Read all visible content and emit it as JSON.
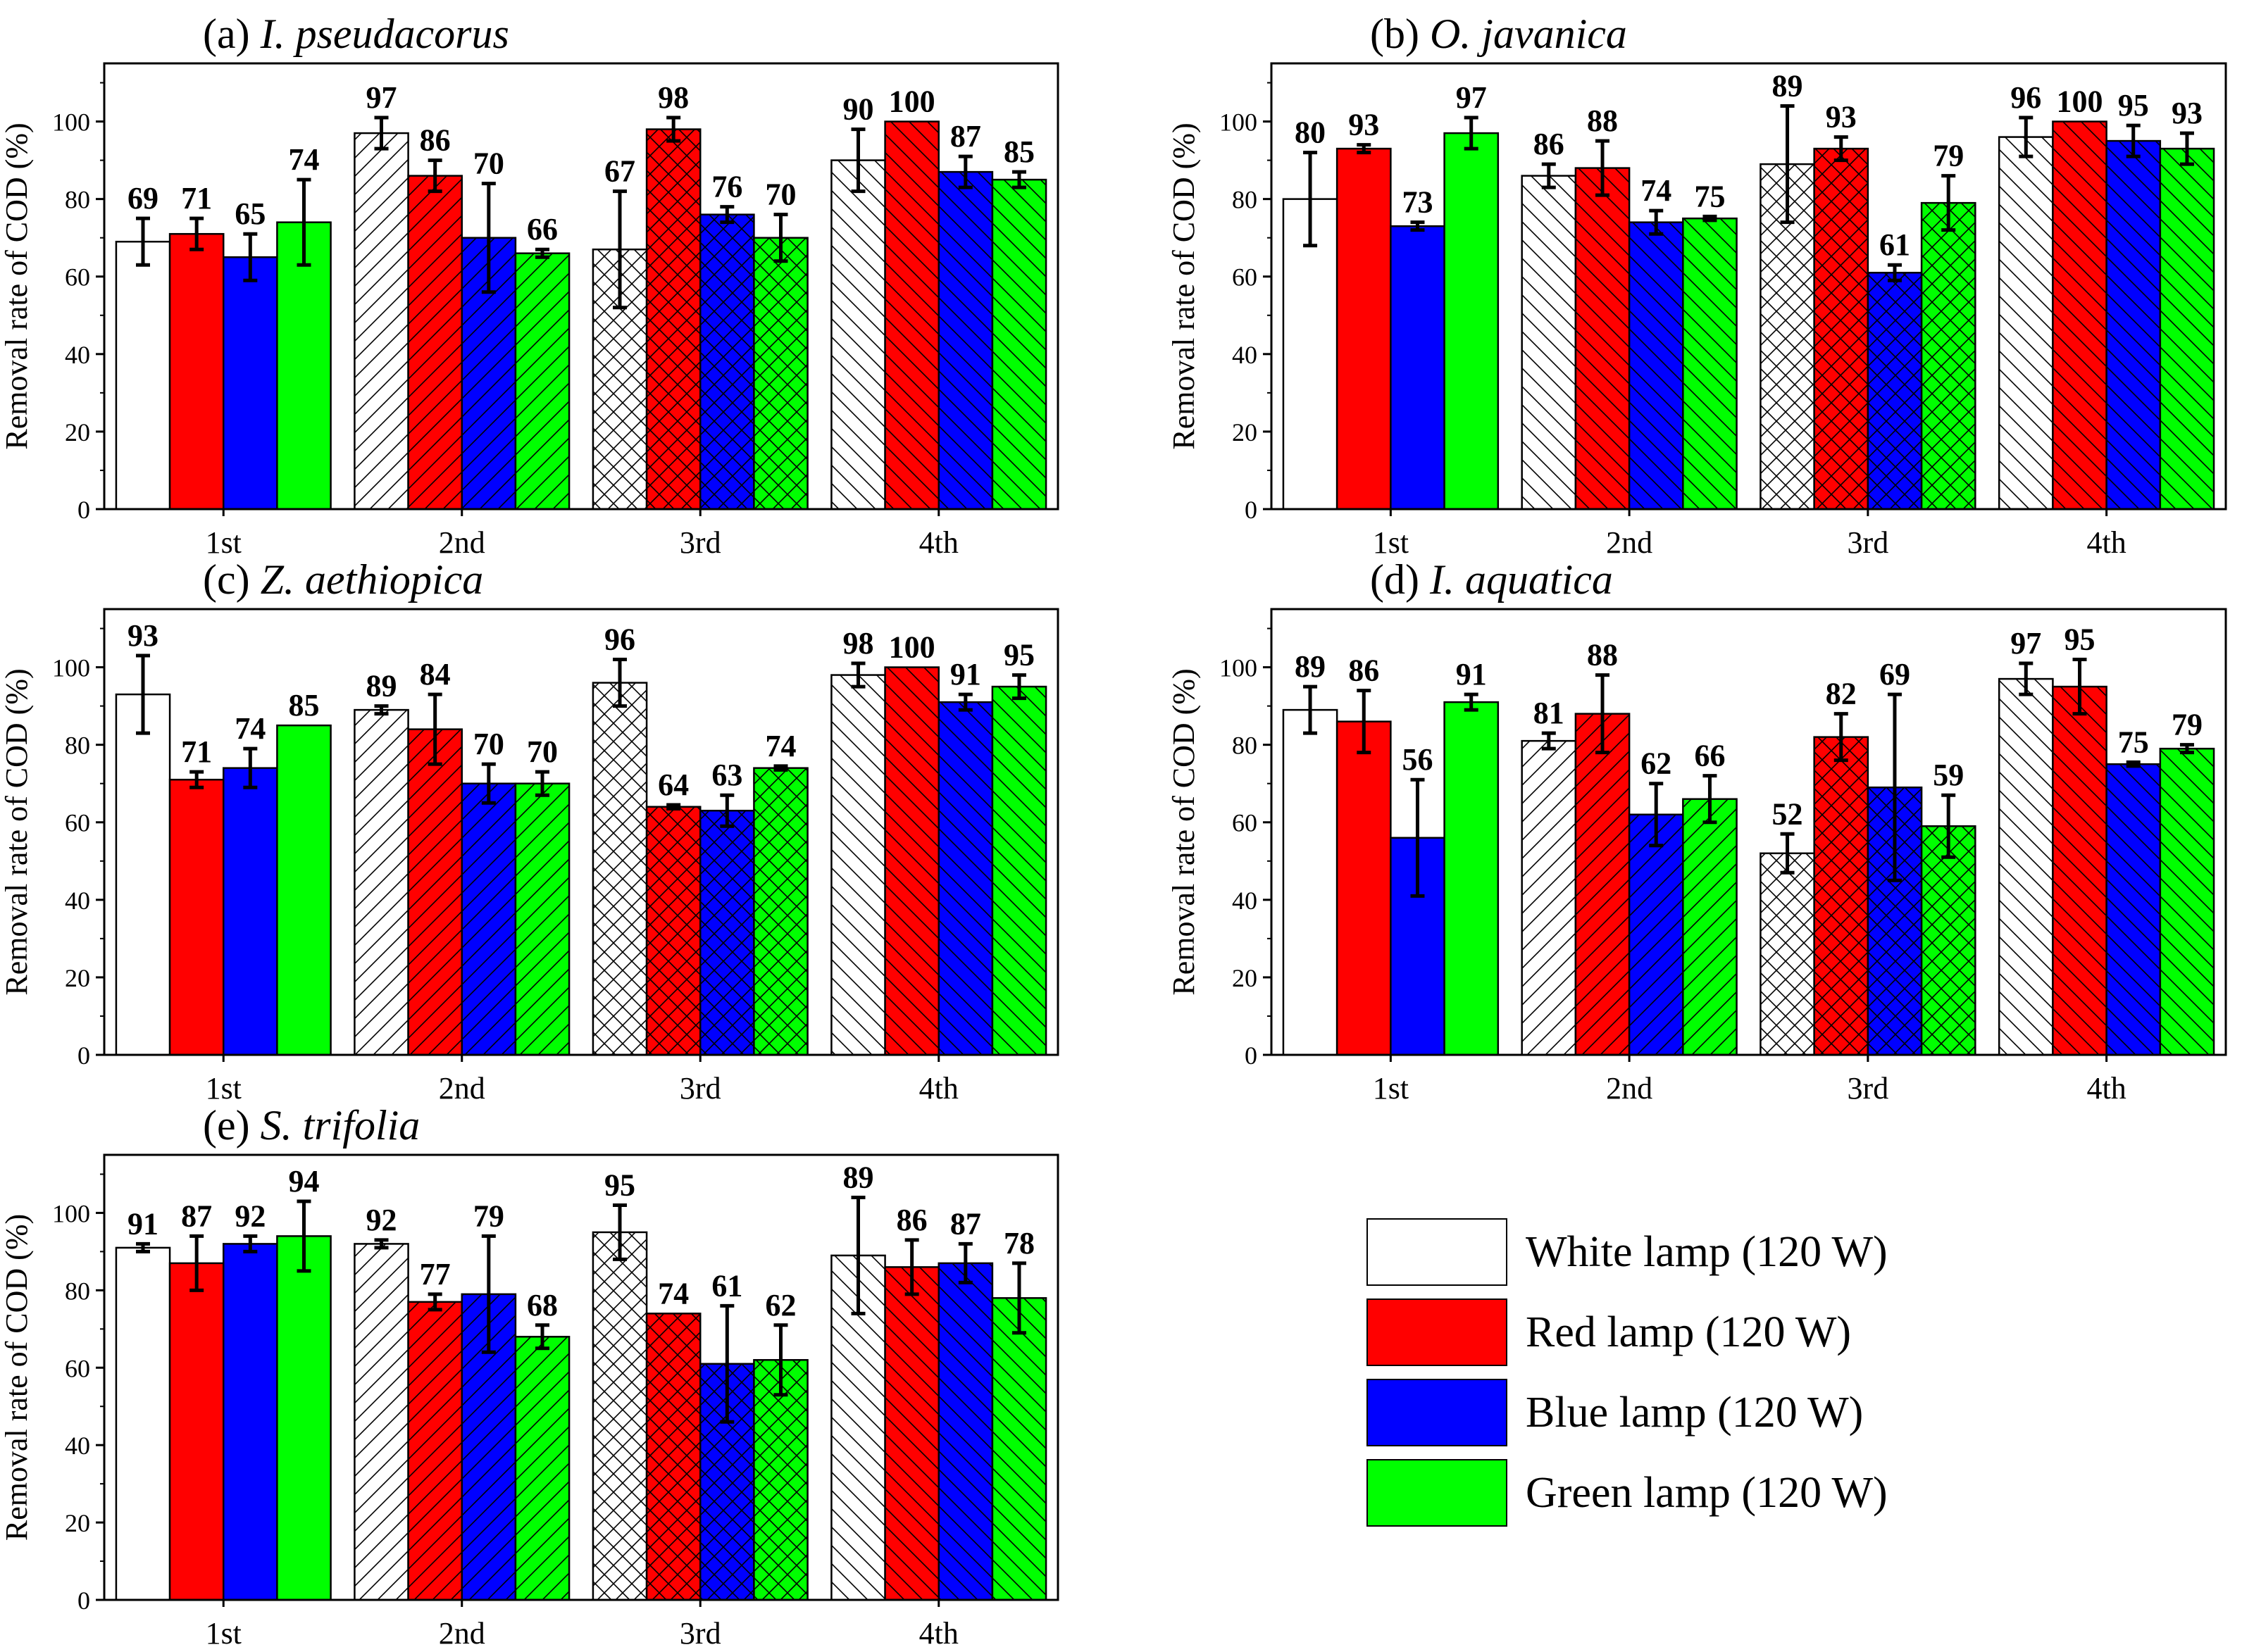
{
  "colors": {
    "white": "#ffffff",
    "red": "#ff0000",
    "blue": "#0000ff",
    "green": "#00ff00",
    "axis": "#000000"
  },
  "legend": [
    {
      "label": "White lamp (120 W)",
      "color": "#ffffff"
    },
    {
      "label": "Red lamp (120 W)",
      "color": "#ff0000"
    },
    {
      "label": "Blue lamp (120 W)",
      "color": "#0000ff"
    },
    {
      "label": "Green lamp (120 W)",
      "color": "#00ff00"
    }
  ],
  "chart_data": [
    {
      "type": "bar",
      "title_prefix": "(a) ",
      "title_species": "I. pseudacorus",
      "ylabel": "Removal rate of COD (%)",
      "xlabel": "",
      "ylim": [
        0,
        115
      ],
      "yticks": [
        0,
        20,
        40,
        60,
        80,
        100
      ],
      "categories": [
        "1st",
        "2nd",
        "3rd",
        "4th"
      ],
      "category_hatch": [
        "none",
        "slash",
        "cross",
        "backslash"
      ],
      "series": [
        {
          "name": "White lamp (120 W)",
          "values": [
            69,
            97,
            67,
            90
          ],
          "errors": [
            6,
            4,
            15,
            8
          ]
        },
        {
          "name": "Red lamp (120 W)",
          "values": [
            71,
            86,
            98,
            100
          ],
          "errors": [
            4,
            4,
            3,
            0
          ]
        },
        {
          "name": "Blue lamp (120 W)",
          "values": [
            65,
            70,
            76,
            87
          ],
          "errors": [
            6,
            14,
            2,
            4
          ]
        },
        {
          "name": "Green lamp (120 W)",
          "values": [
            74,
            66,
            70,
            85
          ],
          "errors": [
            11,
            1,
            6,
            2
          ]
        }
      ]
    },
    {
      "type": "bar",
      "title_prefix": "(b) ",
      "title_species": "O. javanica",
      "ylabel": "Removal rate of COD (%)",
      "xlabel": "",
      "ylim": [
        0,
        115
      ],
      "yticks": [
        0,
        20,
        40,
        60,
        80,
        100
      ],
      "categories": [
        "1st",
        "2nd",
        "3rd",
        "4th"
      ],
      "category_hatch": [
        "none",
        "backslash",
        "cross",
        "backslash"
      ],
      "series": [
        {
          "name": "White lamp (120 W)",
          "values": [
            80,
            86,
            89,
            96
          ],
          "errors": [
            12,
            3,
            15,
            5
          ]
        },
        {
          "name": "Red lamp (120 W)",
          "values": [
            93,
            88,
            93,
            100
          ],
          "errors": [
            1,
            7,
            3,
            0
          ]
        },
        {
          "name": "Blue lamp (120 W)",
          "values": [
            73,
            74,
            61,
            95
          ],
          "errors": [
            1,
            3,
            2,
            4
          ]
        },
        {
          "name": "Green lamp (120 W)",
          "values": [
            97,
            75,
            79,
            93
          ],
          "errors": [
            4,
            0.5,
            7,
            4
          ]
        }
      ]
    },
    {
      "type": "bar",
      "title_prefix": "(c) ",
      "title_species": "Z. aethiopica",
      "ylabel": "Removal rate of COD (%)",
      "xlabel": "",
      "ylim": [
        0,
        115
      ],
      "yticks": [
        0,
        20,
        40,
        60,
        80,
        100
      ],
      "categories": [
        "1st",
        "2nd",
        "3rd",
        "4th"
      ],
      "category_hatch": [
        "none",
        "slash",
        "cross",
        "backslash"
      ],
      "series": [
        {
          "name": "White lamp (120 W)",
          "values": [
            93,
            89,
            96,
            98
          ],
          "errors": [
            10,
            1,
            6,
            3
          ]
        },
        {
          "name": "Red lamp (120 W)",
          "values": [
            71,
            84,
            64,
            100
          ],
          "errors": [
            2,
            9,
            0.5,
            0
          ]
        },
        {
          "name": "Blue lamp (120 W)",
          "values": [
            74,
            70,
            63,
            91
          ],
          "errors": [
            5,
            5,
            4,
            2
          ]
        },
        {
          "name": "Green lamp (120 W)",
          "values": [
            85,
            70,
            74,
            95
          ],
          "errors": [
            0,
            3,
            0.5,
            3
          ]
        }
      ]
    },
    {
      "type": "bar",
      "title_prefix": "(d) ",
      "title_species": "I. aquatica",
      "ylabel": "Removal rate of COD (%)",
      "xlabel": "",
      "ylim": [
        0,
        115
      ],
      "yticks": [
        0,
        20,
        40,
        60,
        80,
        100
      ],
      "categories": [
        "1st",
        "2nd",
        "3rd",
        "4th"
      ],
      "category_hatch": [
        "none",
        "slash",
        "cross",
        "backslash"
      ],
      "series": [
        {
          "name": "White lamp (120 W)",
          "values": [
            89,
            81,
            52,
            97
          ],
          "errors": [
            6,
            2,
            5,
            4
          ]
        },
        {
          "name": "Red lamp (120 W)",
          "values": [
            86,
            88,
            82,
            95
          ],
          "errors": [
            8,
            10,
            6,
            7
          ]
        },
        {
          "name": "Blue lamp (120 W)",
          "values": [
            56,
            62,
            69,
            75
          ],
          "errors": [
            15,
            8,
            24,
            0.5
          ]
        },
        {
          "name": "Green lamp (120 W)",
          "values": [
            91,
            66,
            59,
            79
          ],
          "errors": [
            2,
            6,
            8,
            1
          ]
        }
      ]
    },
    {
      "type": "bar",
      "title_prefix": "(e) ",
      "title_species": "S. trifolia",
      "ylabel": "Removal rate of COD (%)",
      "xlabel": "",
      "ylim": [
        0,
        115
      ],
      "yticks": [
        0,
        20,
        40,
        60,
        80,
        100
      ],
      "categories": [
        "1st",
        "2nd",
        "3rd",
        "4th"
      ],
      "category_hatch": [
        "none",
        "slash",
        "cross",
        "backslash"
      ],
      "series": [
        {
          "name": "White lamp (120 W)",
          "values": [
            91,
            92,
            95,
            89
          ],
          "errors": [
            1,
            1,
            7,
            15
          ]
        },
        {
          "name": "Red lamp (120 W)",
          "values": [
            87,
            77,
            74,
            86
          ],
          "errors": [
            7,
            2,
            0,
            7
          ]
        },
        {
          "name": "Blue lamp (120 W)",
          "values": [
            92,
            79,
            61,
            87
          ],
          "errors": [
            2,
            15,
            15,
            5
          ]
        },
        {
          "name": "Green lamp (120 W)",
          "values": [
            94,
            68,
            62,
            78
          ],
          "errors": [
            9,
            3,
            9,
            9
          ]
        }
      ]
    }
  ]
}
